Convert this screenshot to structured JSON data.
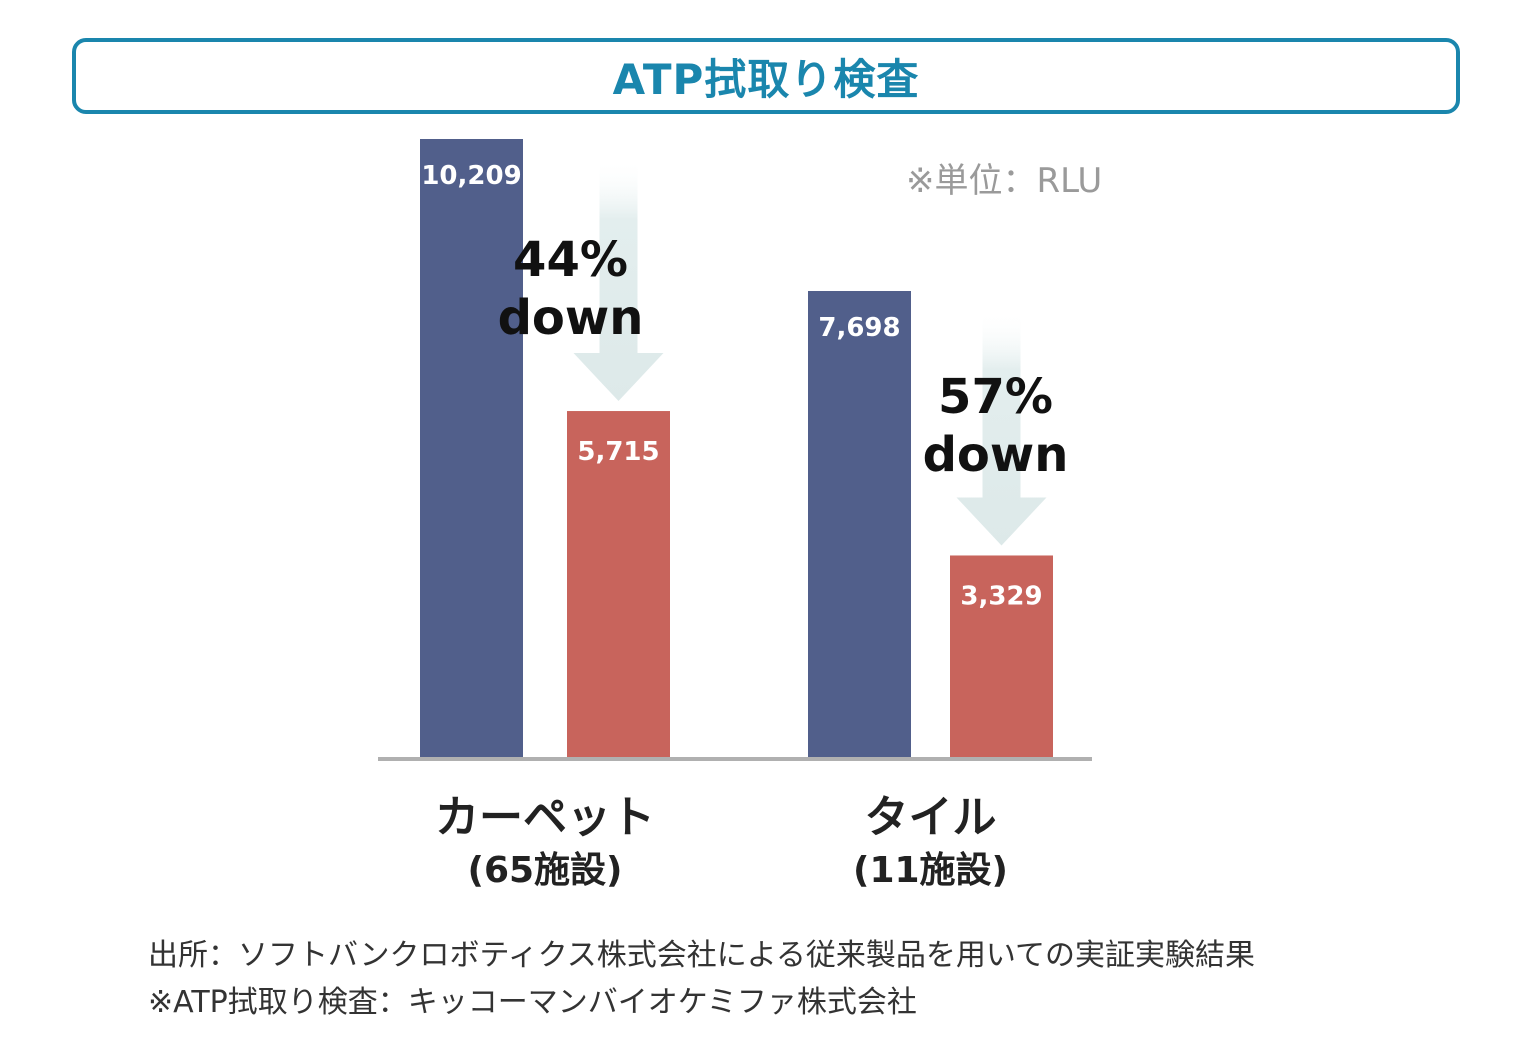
{
  "title": "ATP拭取り検査",
  "chart_data": {
    "type": "bar",
    "unit_note": "※単位：RLU",
    "groups": [
      {
        "name": "カーペット",
        "sub": "(65施設)",
        "before": 10209,
        "after": 5715,
        "before_label": "10,209",
        "after_label": "5,715",
        "change_pct": "44%",
        "change_word": "down"
      },
      {
        "name": "タイル",
        "sub": "(11施設)",
        "before": 7698,
        "after": 3329,
        "before_label": "7,698",
        "after_label": "3,329",
        "change_pct": "57%",
        "change_word": "down"
      }
    ],
    "ylim": [
      0,
      10209
    ],
    "colors": {
      "before": "#515f8b",
      "after": "#c8645c",
      "arrow": "#e3eeee",
      "axis": "#b0b0b0",
      "title": "#1a86ad"
    },
    "grid": false
  },
  "footnotes": [
    "出所：ソフトバンクロボティクス株式会社による従来製品を用いての実証実験結果",
    "※ATP拭取り検査：キッコーマンバイオケミファ株式会社"
  ]
}
